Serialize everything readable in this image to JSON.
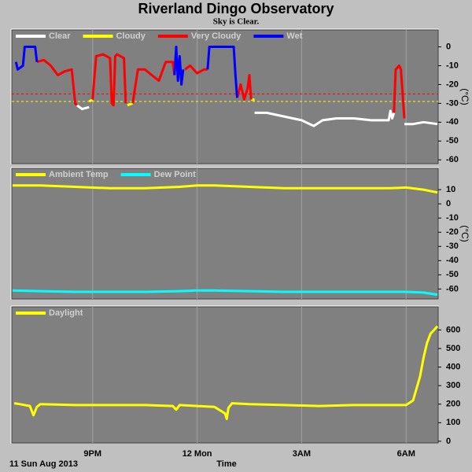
{
  "title": "Riverland Dingo Observatory",
  "subtitle": "Sky is Clear.",
  "x_axis": {
    "label": "Time",
    "start_label": "11 Sun Aug 2013",
    "xlim": [
      18.68,
      30.92
    ],
    "xticks": [
      {
        "value": 21,
        "label": "9PM"
      },
      {
        "value": 24,
        "label": "12 Mon"
      },
      {
        "value": 27,
        "label": "3AM"
      },
      {
        "value": 30,
        "label": "6AM"
      }
    ]
  },
  "chart_data": [
    {
      "type": "line",
      "ylabel": "(°C)",
      "ylim": [
        -62,
        9
      ],
      "yticks": [
        0,
        -10,
        -20,
        -30,
        -40,
        -50,
        -60
      ],
      "reference_lines": [
        {
          "value": -25,
          "color": "#ff0000"
        },
        {
          "value": -29,
          "color": "#ffff00"
        }
      ],
      "series": [
        {
          "name": "Clear",
          "color": "#ffffff",
          "x": [
            20.55,
            20.7,
            20.9,
            20.95,
            25.65,
            26.0,
            26.5,
            27.0,
            27.35,
            27.6,
            28.0,
            28.5,
            29.0,
            29.5,
            29.55,
            29.6,
            29.65,
            29.7,
            29.95,
            30.2,
            30.5,
            30.9
          ],
          "values": [
            -31,
            -33,
            -32,
            null,
            -35,
            -35,
            -37,
            -39,
            -42,
            -39,
            -38,
            -38,
            -39,
            -39,
            -34,
            -38,
            -35,
            null,
            -41,
            -41,
            -40,
            -41
          ]
        },
        {
          "name": "Cloudy",
          "color": "#ffff00",
          "x": [
            20.9,
            21.0,
            21.05,
            22.0,
            22.15,
            22.2,
            25.55,
            25.65
          ],
          "values": [
            -29,
            -28,
            null,
            -31,
            -30,
            null,
            -28,
            -28
          ]
        },
        {
          "name": "Very Cloudy",
          "color": "#ff0000",
          "x": [
            19.4,
            19.6,
            19.8,
            20.0,
            20.2,
            20.4,
            20.5,
            20.55,
            20.6,
            21.0,
            21.1,
            21.3,
            21.5,
            21.55,
            21.6,
            21.65,
            21.7,
            21.9,
            21.95,
            22.0,
            22.15,
            22.3,
            22.5,
            22.7,
            22.9,
            23.1,
            23.3,
            23.35,
            23.4,
            23.65,
            23.8,
            24.0,
            24.2,
            24.3,
            24.35,
            25.15,
            25.25,
            25.35,
            25.45,
            25.5,
            25.55,
            25.6,
            29.65,
            29.7,
            29.8,
            29.85,
            29.95
          ],
          "values": [
            -8,
            -7,
            -10,
            -15,
            -13,
            -12,
            -30,
            -31,
            null,
            -28,
            -5,
            -4,
            -6,
            -30,
            -31,
            -5,
            -4,
            -6,
            -30,
            null,
            -30,
            -12,
            -12,
            -15,
            -18,
            -8,
            -8,
            -15,
            null,
            -12,
            -10,
            -14,
            -12,
            -12,
            null,
            -27,
            -20,
            -28,
            -22,
            -15,
            -28,
            null,
            -35,
            -12,
            -10,
            -12,
            -38
          ]
        },
        {
          "name": "Wet",
          "color": "#0000ff",
          "x": [
            18.8,
            18.85,
            19.0,
            19.05,
            19.35,
            19.4,
            19.5,
            23.35,
            23.4,
            23.45,
            23.5,
            23.55,
            23.6,
            23.7,
            24.3,
            24.35,
            25.05,
            25.1,
            25.15
          ],
          "values": [
            -8,
            -12,
            -10,
            0,
            0,
            -8,
            null,
            -15,
            0,
            -18,
            -5,
            -20,
            -12,
            null,
            -12,
            0,
            0,
            -15,
            -27
          ]
        }
      ]
    },
    {
      "type": "line",
      "ylabel": "(°C)",
      "ylim": [
        -67,
        25
      ],
      "yticks": [
        10,
        0,
        -10,
        -20,
        -30,
        -40,
        -50,
        -60
      ],
      "series": [
        {
          "name": "Ambient Temp",
          "color": "#ffff00",
          "x": [
            18.7,
            19.5,
            20.5,
            21.5,
            22.5,
            23.5,
            24.0,
            24.5,
            25.5,
            26.5,
            27.5,
            28.5,
            29.5,
            30.0,
            30.5,
            30.9
          ],
          "values": [
            13,
            13,
            12,
            11,
            11,
            12,
            13,
            13,
            12,
            11,
            11,
            11,
            11,
            11.5,
            10,
            8
          ]
        },
        {
          "name": "Dew Point",
          "color": "#00ffff",
          "x": [
            18.7,
            19.5,
            20.5,
            21.5,
            22.5,
            23.5,
            24.0,
            24.5,
            25.5,
            26.5,
            27.5,
            28.5,
            29.5,
            30.0,
            30.5,
            30.9
          ],
          "values": [
            -61,
            -61.5,
            -62,
            -62,
            -62,
            -61.5,
            -61,
            -61,
            -61.5,
            -62,
            -62,
            -62,
            -62,
            -62,
            -62.5,
            -64
          ]
        }
      ]
    },
    {
      "type": "line",
      "ylim": [
        -9,
        725
      ],
      "yticks": [
        0,
        100,
        200,
        300,
        400,
        500,
        600
      ],
      "series": [
        {
          "name": "Daylight",
          "color": "#ffff00",
          "x": [
            18.75,
            18.9,
            19.2,
            19.3,
            19.4,
            19.5,
            20.5,
            21.5,
            22.5,
            23.3,
            23.4,
            23.5,
            24.0,
            24.5,
            24.8,
            24.85,
            24.9,
            25.0,
            25.5,
            26.5,
            27.5,
            28.5,
            29.5,
            30.0,
            30.2,
            30.4,
            30.5,
            30.6,
            30.7,
            30.8,
            30.9
          ],
          "values": [
            205,
            200,
            190,
            140,
            185,
            200,
            195,
            195,
            195,
            190,
            170,
            195,
            190,
            185,
            150,
            120,
            180,
            205,
            200,
            195,
            190,
            195,
            195,
            195,
            220,
            350,
            450,
            530,
            580,
            600,
            620
          ]
        }
      ]
    }
  ]
}
